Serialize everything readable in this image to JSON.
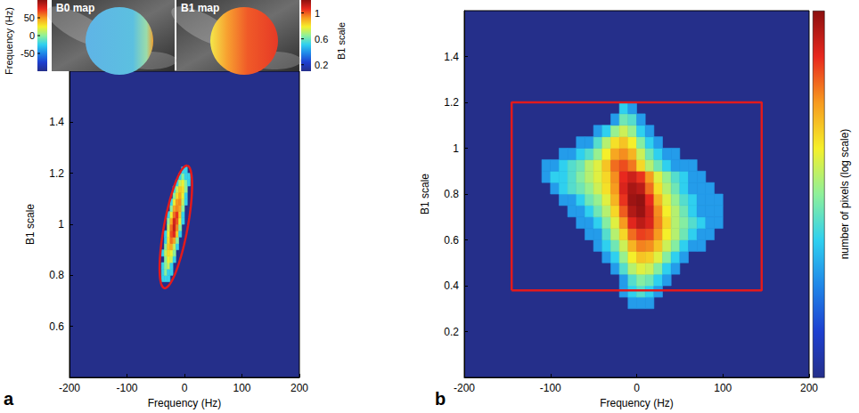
{
  "chart_data": [
    {
      "panel_label": "a",
      "type": "heatmap",
      "x_label": "Frequency (Hz)",
      "y_label": "B1 scale",
      "xlim": [
        -200,
        200
      ],
      "xticks": [
        -200,
        -100,
        0,
        100,
        200
      ],
      "ylim": [
        0.4,
        1.6
      ],
      "yticks": [
        0.6,
        0.8,
        1,
        1.2,
        1.4
      ],
      "x_bins": [
        -45,
        -40,
        -35,
        -30,
        -25,
        -20,
        -15,
        -10,
        -5,
        0,
        5,
        10
      ],
      "y_bins": [
        0.775,
        0.8,
        0.825,
        0.85,
        0.875,
        0.9,
        0.925,
        0.95,
        0.975,
        1,
        1.025,
        1.05,
        1.075,
        1.1,
        1.125,
        1.15,
        1.175,
        1.2,
        1.225
      ],
      "counts": [
        [
          0,
          1,
          1,
          1,
          0,
          0,
          0,
          0,
          0,
          0,
          0
        ],
        [
          0,
          1,
          2,
          1,
          1,
          0,
          0,
          0,
          0,
          0,
          0
        ],
        [
          0,
          1,
          2,
          3,
          1,
          0,
          0,
          0,
          0,
          0,
          0
        ],
        [
          0,
          0,
          2,
          4,
          3,
          1,
          0,
          0,
          0,
          0,
          0
        ],
        [
          0,
          1,
          3,
          5,
          4,
          2,
          0,
          0,
          0,
          0,
          0
        ],
        [
          0,
          0,
          2,
          6,
          8,
          3,
          1,
          0,
          0,
          0,
          0
        ],
        [
          0,
          0,
          1,
          5,
          12,
          8,
          2,
          0,
          0,
          0,
          0
        ],
        [
          0,
          0,
          1,
          4,
          15,
          20,
          6,
          1,
          0,
          0,
          0
        ],
        [
          0,
          0,
          0,
          3,
          12,
          25,
          10,
          2,
          0,
          0,
          0
        ],
        [
          0,
          0,
          0,
          2,
          8,
          22,
          14,
          4,
          1,
          0,
          0
        ],
        [
          0,
          0,
          0,
          1,
          4,
          12,
          18,
          6,
          1,
          0,
          0
        ],
        [
          0,
          0,
          0,
          0,
          2,
          8,
          10,
          8,
          2,
          0,
          0
        ],
        [
          0,
          0,
          0,
          0,
          1,
          4,
          9,
          10,
          3,
          1,
          0
        ],
        [
          0,
          0,
          0,
          0,
          0,
          2,
          5,
          8,
          4,
          1,
          0
        ],
        [
          0,
          0,
          0,
          0,
          0,
          1,
          3,
          6,
          5,
          2,
          0
        ],
        [
          0,
          0,
          0,
          0,
          0,
          0,
          1,
          3,
          4,
          2,
          1
        ],
        [
          0,
          0,
          0,
          0,
          0,
          0,
          0,
          1,
          2,
          1,
          1
        ],
        [
          0,
          0,
          0,
          0,
          0,
          0,
          0,
          0,
          1,
          1,
          0
        ]
      ],
      "color_range": [
        0.1,
        40
      ],
      "ellipse": {
        "center": [
          -15,
          0.99
        ],
        "axis_end": [
          5,
          1.23
        ],
        "minor_end": [
          5,
          0.98
        ],
        "color": "#e31a1c"
      },
      "inset_maps": [
        {
          "label": "B0 map",
          "colorbar_title": "Frequency (Hz)",
          "colorbar_range": [
            -100,
            100
          ],
          "colorbar_ticks": [
            -50,
            0,
            50
          ]
        },
        {
          "label": "B1 map",
          "colorbar_title": "B1 scale",
          "colorbar_range": [
            0.1,
            1.2
          ],
          "colorbar_ticks": [
            0.2,
            0.6,
            1
          ]
        }
      ]
    },
    {
      "panel_label": "b",
      "type": "heatmap",
      "x_label": "Frequency (Hz)",
      "y_label": "B1 scale",
      "xlim": [
        -200,
        200
      ],
      "xticks": [
        -200,
        -100,
        0,
        100,
        200
      ],
      "ylim": [
        0,
        1.6
      ],
      "yticks": [
        0.2,
        0.4,
        0.6,
        0.8,
        1,
        1.2,
        1.4
      ],
      "x_bins": [
        -120,
        -110,
        -100,
        -90,
        -80,
        -70,
        -60,
        -50,
        -40,
        -30,
        -20,
        -10,
        0,
        10,
        20,
        30,
        40,
        50,
        60,
        70,
        80,
        90,
        100,
        110,
        120
      ],
      "y_bins": [
        0.3,
        0.35,
        0.4,
        0.45,
        0.5,
        0.55,
        0.6,
        0.65,
        0.7,
        0.75,
        0.8,
        0.85,
        0.9,
        0.95,
        1,
        1.05,
        1.1,
        1.15,
        1.2
      ],
      "counts": [
        [
          0,
          0,
          0,
          0,
          0,
          0,
          0,
          0,
          0,
          0,
          0,
          1,
          1,
          1,
          0,
          0,
          0,
          0,
          0,
          0,
          0,
          0,
          0,
          0
        ],
        [
          0,
          0,
          0,
          0,
          0,
          0,
          0,
          0,
          0,
          0,
          1,
          2,
          3,
          2,
          1,
          0,
          0,
          0,
          0,
          0,
          0,
          0,
          0,
          0
        ],
        [
          0,
          0,
          0,
          0,
          0,
          0,
          0,
          0,
          0,
          0,
          1,
          3,
          5,
          4,
          2,
          1,
          0,
          0,
          0,
          0,
          0,
          0,
          0,
          0
        ],
        [
          0,
          0,
          0,
          0,
          0,
          0,
          0,
          0,
          0,
          1,
          3,
          8,
          12,
          10,
          5,
          2,
          1,
          0,
          0,
          0,
          0,
          0,
          0,
          0
        ],
        [
          0,
          0,
          0,
          0,
          0,
          0,
          0,
          0,
          1,
          2,
          6,
          15,
          25,
          22,
          12,
          5,
          2,
          1,
          0,
          0,
          0,
          0,
          0,
          0
        ],
        [
          0,
          0,
          0,
          0,
          0,
          0,
          0,
          1,
          2,
          4,
          10,
          30,
          50,
          45,
          25,
          10,
          5,
          2,
          1,
          1,
          0,
          0,
          0,
          0
        ],
        [
          0,
          0,
          0,
          0,
          0,
          0,
          1,
          1,
          3,
          8,
          20,
          60,
          90,
          80,
          40,
          15,
          8,
          4,
          2,
          1,
          1,
          0,
          0,
          0
        ],
        [
          0,
          0,
          0,
          0,
          0,
          1,
          1,
          2,
          5,
          12,
          40,
          120,
          180,
          130,
          50,
          20,
          8,
          5,
          3,
          2,
          1,
          1,
          0,
          0
        ],
        [
          0,
          0,
          0,
          0,
          1,
          1,
          2,
          4,
          8,
          20,
          70,
          200,
          260,
          140,
          45,
          15,
          8,
          4,
          2,
          1,
          1,
          1,
          0,
          0
        ],
        [
          0,
          0,
          0,
          1,
          1,
          2,
          4,
          6,
          12,
          30,
          100,
          250,
          280,
          110,
          30,
          12,
          6,
          3,
          2,
          1,
          1,
          1,
          0,
          0
        ],
        [
          0,
          0,
          1,
          2,
          3,
          4,
          6,
          10,
          18,
          40,
          130,
          220,
          180,
          60,
          18,
          8,
          4,
          2,
          1,
          1,
          1,
          0,
          0,
          0
        ],
        [
          0,
          1,
          2,
          2,
          3,
          5,
          8,
          12,
          20,
          45,
          110,
          150,
          100,
          40,
          12,
          6,
          3,
          2,
          1,
          1,
          0,
          0,
          0,
          0
        ],
        [
          0,
          1,
          1,
          2,
          3,
          4,
          8,
          12,
          25,
          60,
          80,
          55,
          20,
          8,
          4,
          2,
          1,
          1,
          1,
          0,
          0,
          0,
          0,
          0
        ],
        [
          0,
          0,
          0,
          1,
          1,
          2,
          3,
          6,
          15,
          35,
          45,
          30,
          10,
          4,
          2,
          1,
          1,
          0,
          0,
          0,
          0,
          0,
          0,
          0
        ],
        [
          0,
          0,
          0,
          0,
          0,
          1,
          1,
          3,
          8,
          18,
          25,
          15,
          5,
          2,
          1,
          0,
          0,
          0,
          0,
          0,
          0,
          0,
          0,
          0
        ],
        [
          0,
          0,
          0,
          0,
          0,
          0,
          0,
          1,
          2,
          6,
          10,
          6,
          2,
          1,
          0,
          0,
          0,
          0,
          0,
          0,
          0,
          0,
          0,
          0
        ],
        [
          0,
          0,
          0,
          0,
          0,
          0,
          0,
          0,
          0,
          1,
          4,
          3,
          1,
          0,
          0,
          0,
          0,
          0,
          0,
          0,
          0,
          0,
          0,
          0
        ],
        [
          0,
          0,
          0,
          0,
          0,
          0,
          0,
          0,
          0,
          0,
          2,
          1,
          0,
          0,
          0,
          0,
          0,
          0,
          0,
          0,
          0,
          0,
          0,
          0
        ]
      ],
      "color_range": [
        0.1,
        300
      ],
      "colorbar_title": "number of pixels (log scale)",
      "rectangle": {
        "x": [
          -145,
          145
        ],
        "y": [
          0.38,
          1.2
        ],
        "color": "#e31a1c"
      }
    }
  ]
}
